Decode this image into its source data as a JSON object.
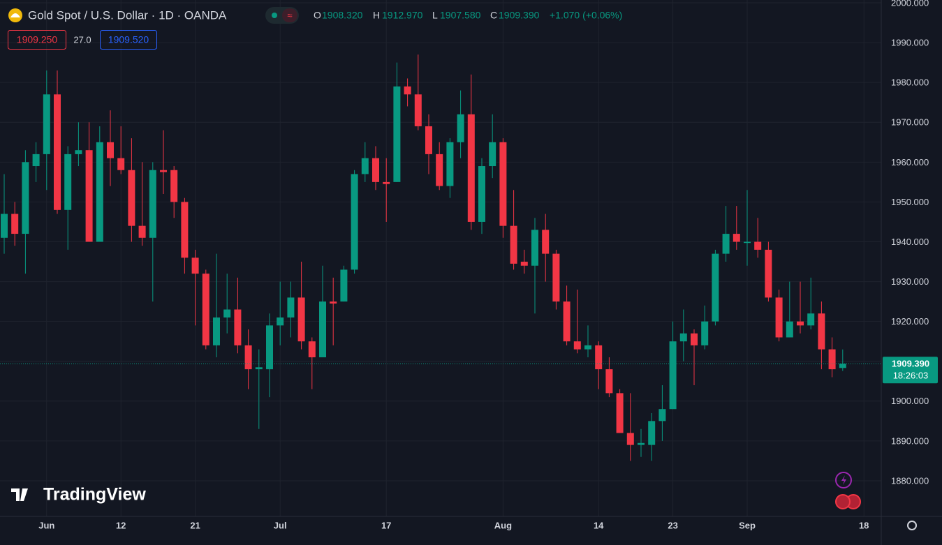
{
  "header": {
    "symbol": "Gold Spot / U.S. Dollar · 1D · OANDA",
    "open_label": "O",
    "open": "1908.320",
    "high_label": "H",
    "high": "1912.970",
    "low_label": "L",
    "low": "1907.580",
    "close_label": "C",
    "close": "1909.390",
    "change": "+1.070 (+0.06%)",
    "sell": "1909.250",
    "spread": "27.0",
    "buy": "1909.520",
    "countdown": "18:26:03",
    "logo": "TradingView"
  },
  "chart_data": {
    "type": "candlestick",
    "up_color": "#089981",
    "down_color": "#f23645",
    "grid": true,
    "categories": [
      null,
      null,
      null,
      null,
      "Jun",
      null,
      null,
      null,
      null,
      null,
      null,
      "12",
      null,
      null,
      null,
      null,
      null,
      null,
      "21",
      null,
      null,
      null,
      null,
      null,
      null,
      null,
      "Jul",
      null,
      null,
      null,
      null,
      null,
      null,
      null,
      null,
      null,
      "17",
      null,
      null,
      null,
      null,
      null,
      null,
      null,
      null,
      null,
      null,
      "Aug",
      null,
      null,
      null,
      null,
      null,
      null,
      null,
      null,
      "14",
      null,
      null,
      null,
      null,
      null,
      null,
      "23",
      null,
      null,
      null,
      null,
      null,
      null,
      "Sep",
      null,
      null,
      null,
      null,
      null,
      null,
      null,
      null,
      null,
      null,
      "18"
    ],
    "open": [
      1941,
      1947,
      1942,
      1959,
      1962,
      1977,
      1948,
      1962,
      1963,
      1940,
      1965,
      1961,
      1958,
      1944,
      1941,
      1958,
      1958,
      1950,
      1936,
      1932,
      1914,
      1921,
      1923,
      1914,
      1908,
      1908,
      1919,
      1921,
      1926,
      1915,
      1911,
      1925,
      1925,
      1933,
      1957,
      1961,
      1955,
      1955,
      1979,
      1977,
      1969,
      1962,
      1954,
      1965,
      1972,
      1945,
      1959,
      1965,
      1944,
      1935,
      1934,
      1943,
      1937,
      1925,
      1915,
      1913,
      1914,
      1908,
      1902,
      1892,
      1889,
      1889,
      1895,
      1898,
      1915,
      1917,
      1914,
      1920,
      1937,
      1942,
      1939.7,
      1940,
      1938,
      1926,
      1916,
      1920,
      1919,
      1922,
      1913,
      1908.32,
      null,
      null
    ],
    "high": [
      1957,
      1950,
      1963,
      1965,
      1983,
      1983,
      1964,
      1970,
      1970,
      1969,
      1973,
      1969,
      1966,
      1960,
      1960,
      1968,
      1959,
      1951,
      1938,
      1933,
      1937,
      1932,
      1931,
      1918,
      1913,
      1922,
      1930,
      1930,
      1935,
      1916,
      1934,
      1931,
      1934,
      1958,
      1965,
      1964,
      1961,
      1985,
      1981,
      1987,
      1972,
      1965,
      1966,
      1978,
      1982,
      1961,
      1972,
      1966,
      1953,
      1938,
      1946,
      1947,
      1938,
      1929,
      1928,
      1919,
      1915,
      1911,
      1903,
      1902,
      1893,
      1897,
      1904,
      1920,
      1923,
      1918,
      1924,
      1938,
      1949,
      1949,
      1953,
      1946,
      1940,
      1928,
      1930,
      1930,
      1931,
      1925,
      1916,
      1912.97,
      null,
      null
    ],
    "low": [
      1937,
      1939,
      1932,
      1955,
      1953,
      1947,
      1938,
      1959,
      1940,
      1940,
      1954,
      1957,
      1940,
      1939,
      1925,
      1952,
      1946,
      1932,
      1919,
      1913,
      1911,
      1917,
      1912,
      1903,
      1893,
      1901,
      1914,
      1916,
      1913,
      1903,
      1911,
      1914,
      1925,
      1932,
      1955,
      1953,
      1945,
      1955,
      1974,
      1968,
      1957,
      1953,
      1951,
      1961,
      1943,
      1942,
      1956,
      1941,
      1933,
      1932,
      1922,
      1930,
      1923,
      1914,
      1912,
      1911,
      1903,
      1901,
      1892,
      1885,
      1886,
      1885,
      1890,
      1898,
      1910,
      1904,
      1913,
      1919,
      1935,
      1938,
      1934,
      1936,
      1925,
      1915,
      1916,
      1917,
      1918,
      1908,
      1906,
      1907.58,
      null,
      null
    ],
    "close": [
      1947,
      1942,
      1960,
      1962,
      1977,
      1948,
      1962,
      1963,
      1940,
      1965,
      1961,
      1958,
      1944,
      1941,
      1958,
      1957.5,
      1950,
      1936,
      1932,
      1914,
      1921,
      1923,
      1914,
      1908,
      1908.5,
      1919,
      1921,
      1926,
      1915,
      1911,
      1925,
      1924.5,
      1933,
      1957,
      1961,
      1955,
      1954.5,
      1979,
      1977,
      1969,
      1962,
      1954,
      1965,
      1972,
      1945,
      1959,
      1965,
      1944,
      1934.5,
      1934,
      1943,
      1937,
      1925,
      1915,
      1913,
      1914,
      1908,
      1902,
      1892,
      1889,
      1889.5,
      1895,
      1898,
      1915,
      1917,
      1914,
      1920,
      1937,
      1942,
      1940,
      1940,
      1938,
      1926,
      1916,
      1920,
      1919,
      1922,
      1913,
      1908,
      1909.39,
      null,
      null
    ],
    "ylim": [
      1871.06,
      2000.7
    ],
    "yticks": [
      {
        "value": 1880,
        "label": "1880.000"
      },
      {
        "value": 1890,
        "label": "1890.000"
      },
      {
        "value": 1900,
        "label": "1900.000"
      },
      {
        "value": 1910,
        "label": "1910.000"
      },
      {
        "value": 1920,
        "label": "1920.000"
      },
      {
        "value": 1930,
        "label": "1930.000"
      },
      {
        "value": 1940,
        "label": "1940.000"
      },
      {
        "value": 1950,
        "label": "1950.000"
      },
      {
        "value": 1960,
        "label": "1960.000"
      },
      {
        "value": 1970,
        "label": "1970.000"
      },
      {
        "value": 1980,
        "label": "1980.000"
      },
      {
        "value": 1990,
        "label": "1990.000"
      },
      {
        "value": 2000,
        "label": "2000.000"
      }
    ]
  }
}
